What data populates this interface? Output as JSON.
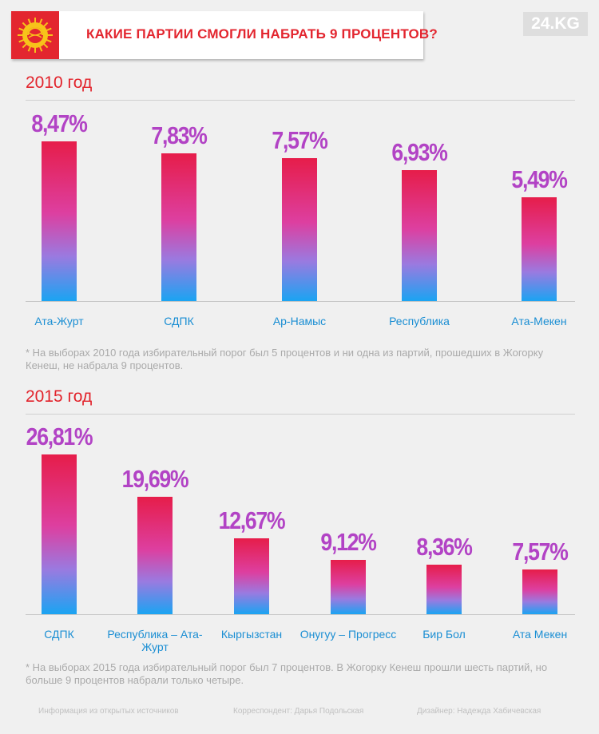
{
  "header": {
    "title": "КАКИЕ ПАРТИИ СМОГЛИ НАБРАТЬ 9 ПРОЦЕНТОВ?",
    "brand": "24.KG",
    "accent_color": "#e3262f"
  },
  "sections": [
    {
      "year": "2010 год",
      "note": "* На выборах 2010 года избирательный порог был 5 процентов и ни одна из партий, прошедших в Жогорку Кенеш, не набрала 9 процентов."
    },
    {
      "year": "2015 год",
      "note": "* На выборах 2015 года избирательный порог был 7 процентов. В Жогорку Кенеш прошли шесть партий, но больше 9 процентов набрали только четыре."
    }
  ],
  "footer": {
    "source": "Информация из открытых источников",
    "correspondent": "Корреспондент: Дарья Подольская",
    "designer": "Дизайнер: Надежда Хабичевская"
  },
  "chart_data": [
    {
      "type": "bar",
      "title": "2010 год",
      "categories": [
        "Ата-Журт",
        "СДПК",
        "Ар-Намыс",
        "Республика",
        "Ата-Мекен"
      ],
      "values": [
        8.47,
        7.83,
        7.57,
        6.93,
        5.49
      ],
      "value_labels": [
        "8,47%",
        "7,83%",
        "7,57%",
        "6,93%",
        "5,49%"
      ],
      "unit": "%",
      "grid": false,
      "label_color": "#b243c5",
      "category_color": "#1a8ed3"
    },
    {
      "type": "bar",
      "title": "2015 год",
      "categories": [
        "СДПК",
        "Республика – Ата-Журт",
        "Кыргызстан",
        "Онугуу – Прогресс",
        "Бир Бол",
        "Ата Мекен"
      ],
      "values": [
        26.81,
        19.69,
        12.67,
        9.12,
        8.36,
        7.57
      ],
      "value_labels": [
        "26,81%",
        "19,69%",
        "12,67%",
        "9,12%",
        "8,36%",
        "7,57%"
      ],
      "unit": "%",
      "grid": false,
      "label_color": "#b243c5",
      "category_color": "#1a8ed3"
    }
  ]
}
